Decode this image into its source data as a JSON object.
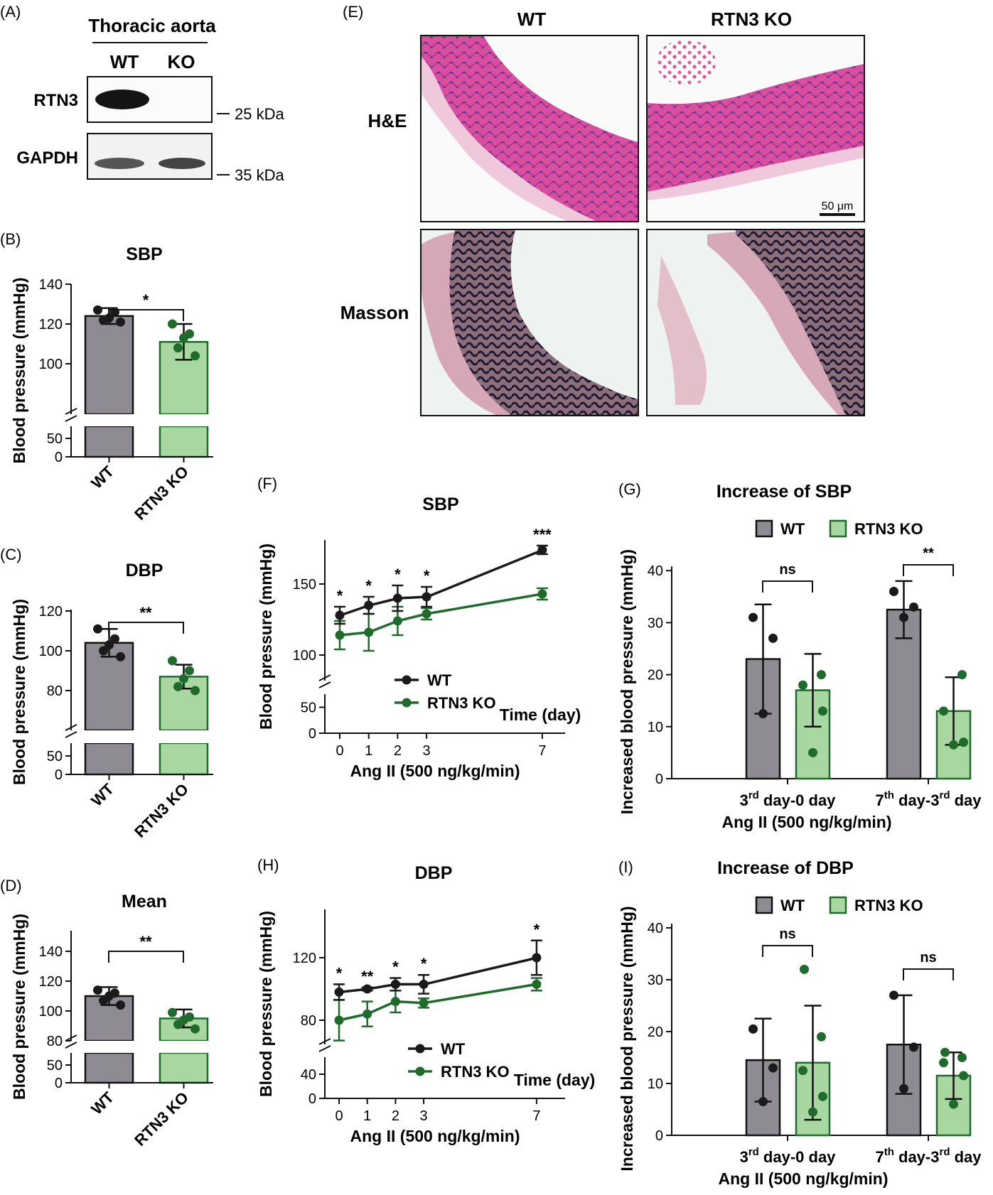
{
  "colors": {
    "wt": "#8e8c92",
    "ko": "#a9d7a2",
    "ko_dark": "#1e6b2c",
    "wt_dark": "#1a1a1a",
    "he": "#d4479c",
    "masson": "#2b2140"
  },
  "panels": {
    "A": {
      "letter": "(A)",
      "title": "Thoracic aorta",
      "lane_wt": "WT",
      "lane_ko": "KO",
      "band1": "RTN3",
      "band2": "GAPDH",
      "marker1": "25 kDa",
      "marker2": "35 kDa"
    },
    "E": {
      "letter": "(E)",
      "col1": "WT",
      "col2": "RTN3 KO",
      "row1": "H&E",
      "row2": "Masson",
      "scalebar": "50 μm"
    }
  },
  "chart_data": [
    {
      "id": "B",
      "letter": "(B)",
      "type": "bar",
      "title": "SBP",
      "ylabel": "Blood pressure (mmHg)",
      "categories": [
        "WT",
        "RTN3 KO"
      ],
      "values": [
        124,
        111
      ],
      "errors": [
        4,
        9
      ],
      "points": [
        [
          121,
          122,
          123,
          126,
          127
        ],
        [
          104,
          108,
          113,
          115,
          120
        ]
      ],
      "sig": "*",
      "yticks_upper": [
        "100",
        "120",
        "140"
      ],
      "yticks_lower": [
        "0",
        "50"
      ]
    },
    {
      "id": "C",
      "letter": "(C)",
      "type": "bar",
      "title": "DBP",
      "ylabel": "Blood pressure (mmHg)",
      "categories": [
        "WT",
        "RTN3 KO"
      ],
      "values": [
        104,
        87
      ],
      "errors": [
        7,
        6
      ],
      "points": [
        [
          97,
          100,
          103,
          106,
          111
        ],
        [
          80,
          82,
          86,
          90,
          95
        ]
      ],
      "sig": "**",
      "yticks_upper": [
        "80",
        "100",
        "120"
      ],
      "yticks_lower": [
        "0",
        "50"
      ]
    },
    {
      "id": "D",
      "letter": "(D)",
      "type": "bar",
      "title": "Mean",
      "ylabel": "Blood pressure (mmHg)",
      "categories": [
        "WT",
        "RTN3 KO"
      ],
      "values": [
        110,
        95
      ],
      "errors": [
        6,
        6
      ],
      "points": [
        [
          104,
          107,
          110,
          112,
          114
        ],
        [
          88,
          91,
          94,
          96,
          99
        ]
      ],
      "sig": "**",
      "yticks_upper": [
        "80",
        "100",
        "120",
        "140"
      ],
      "yticks_lower": [
        "0",
        "50"
      ]
    },
    {
      "id": "F",
      "letter": "(F)",
      "type": "line",
      "title": "SBP",
      "ylabel": "Blood pressure (mmHg)",
      "xlabel": "Ang II (500 ng/kg/min)",
      "time_label": "Time (day)",
      "x": [
        0,
        1,
        2,
        3,
        7
      ],
      "xticks": [
        "0",
        "1",
        "2",
        "3",
        "7"
      ],
      "yticks_upper": [
        "100",
        "150"
      ],
      "yticks_lower": [
        "0",
        "50"
      ],
      "series": [
        {
          "name": "WT",
          "values": [
            128,
            135,
            140,
            141,
            174
          ],
          "errors": [
            6,
            6,
            9,
            7,
            3
          ]
        },
        {
          "name": "RTN3 KO",
          "values": [
            114,
            116,
            124,
            129,
            143
          ],
          "errors": [
            10,
            13,
            10,
            4,
            4
          ]
        }
      ],
      "sig": [
        "*",
        "*",
        "*",
        "*",
        "***"
      ]
    },
    {
      "id": "H",
      "letter": "(H)",
      "type": "line",
      "title": "DBP",
      "ylabel": "Blood pressure (mmHg)",
      "xlabel": "Ang II (500 ng/kg/min)",
      "time_label": "Time (day)",
      "x": [
        0,
        1,
        2,
        3,
        7
      ],
      "xticks": [
        "0",
        "1",
        "2",
        "3",
        "7"
      ],
      "yticks_upper": [
        "80",
        "120"
      ],
      "yticks_lower": [
        "0",
        "40"
      ],
      "series": [
        {
          "name": "WT",
          "values": [
            98,
            100,
            103,
            103,
            120
          ],
          "errors": [
            5,
            1,
            4,
            6,
            11
          ]
        },
        {
          "name": "RTN3 KO",
          "values": [
            80,
            84,
            92,
            91,
            103
          ],
          "errors": [
            13,
            8,
            7,
            3,
            4
          ]
        }
      ],
      "sig": [
        "*",
        "**",
        "*",
        "*",
        "*"
      ]
    },
    {
      "id": "G",
      "letter": "(G)",
      "type": "bar",
      "title": "Increase of SBP",
      "ylabel": "Increased blood pressure (mmHg)",
      "xlabel": "Ang II (500 ng/kg/min)",
      "ylim": [
        0,
        40
      ],
      "yticks": [
        "0",
        "10",
        "20",
        "30",
        "40"
      ],
      "legend": [
        "WT",
        "RTN3 KO"
      ],
      "group_labels": [
        {
          "a": "3",
          "sup1": "rd",
          "b": " day-0 day",
          "sup2": "",
          "c": ""
        },
        {
          "a": "7",
          "sup1": "th",
          "b": " day-3",
          "sup2": "rd",
          "c": " day"
        }
      ],
      "series": [
        {
          "name": "WT",
          "values": [
            23,
            32.5
          ],
          "errors": [
            10.5,
            5.5
          ],
          "points": [
            [
              12.5,
              27,
              31
            ],
            [
              31,
              33,
              36
            ]
          ]
        },
        {
          "name": "RTN3 KO",
          "values": [
            17,
            13
          ],
          "errors": [
            7,
            6.5
          ],
          "points": [
            [
              5,
              13,
              18,
              20
            ],
            [
              6.5,
              7,
              13,
              20
            ]
          ]
        }
      ],
      "sig": [
        "ns",
        "**"
      ]
    },
    {
      "id": "I",
      "letter": "(I)",
      "type": "bar",
      "title": "Increase of DBP",
      "ylabel": "Increased blood pressure (mmHg)",
      "xlabel": "Ang II (500 ng/kg/min)",
      "ylim": [
        0,
        40
      ],
      "yticks": [
        "0",
        "10",
        "20",
        "30",
        "40"
      ],
      "legend": [
        "WT",
        "RTN3 KO"
      ],
      "group_labels": [
        {
          "a": "3",
          "sup1": "rd",
          "b": " day-0 day",
          "sup2": "",
          "c": ""
        },
        {
          "a": "7",
          "sup1": "th",
          "b": " day-3",
          "sup2": "rd",
          "c": " day"
        }
      ],
      "series": [
        {
          "name": "WT",
          "values": [
            14.5,
            17.5
          ],
          "errors": [
            8,
            9.5
          ],
          "points": [
            [
              6.5,
              13,
              20.5
            ],
            [
              9,
              17,
              27
            ]
          ]
        },
        {
          "name": "RTN3 KO",
          "values": [
            14,
            11.5
          ],
          "errors": [
            11,
            4.5
          ],
          "points": [
            [
              4.5,
              7.5,
              12.5,
              19,
              32
            ],
            [
              6,
              11.5,
              14,
              15,
              16
            ]
          ]
        }
      ],
      "sig": [
        "ns",
        "ns"
      ]
    }
  ]
}
